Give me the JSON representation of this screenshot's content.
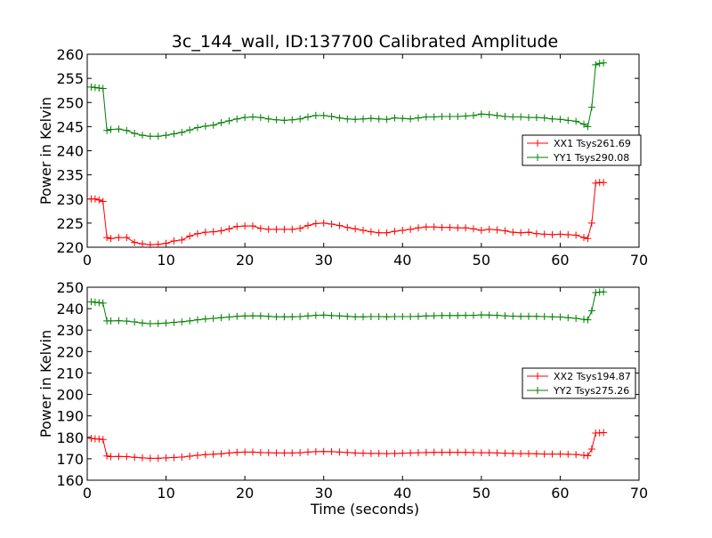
{
  "figure": {
    "title": "3c_144_wall, ID:137700 Calibrated Amplitude",
    "xlabel": "Time (seconds)"
  },
  "colors": {
    "XX": "#ff0000",
    "YY": "#008000",
    "axes": "#000000"
  },
  "chart_data": [
    {
      "type": "line",
      "ylabel": "Power in Kelvin",
      "xlim": [
        0,
        70
      ],
      "ylim": [
        220,
        260
      ],
      "xticks": [
        0,
        10,
        20,
        30,
        40,
        50,
        60,
        70
      ],
      "yticks": [
        220,
        225,
        230,
        235,
        240,
        245,
        250,
        255,
        260
      ],
      "legend_position": "center-right",
      "series": [
        {
          "name": "XX1 Tsys261.69",
          "color": "#ff0000",
          "x": [
            0.5,
            1.0,
            1.5,
            2.0,
            2.5,
            3.0,
            4.0,
            5.0,
            6.0,
            7.0,
            8.0,
            9.0,
            10.0,
            11.0,
            12.0,
            13.0,
            14.0,
            15.0,
            16.0,
            17.0,
            18.0,
            19.0,
            20.0,
            21.0,
            22.0,
            23.0,
            24.0,
            25.0,
            26.0,
            27.0,
            28.0,
            29.0,
            30.0,
            31.0,
            32.0,
            33.0,
            34.0,
            35.0,
            36.0,
            37.0,
            38.0,
            39.0,
            40.0,
            41.0,
            42.0,
            43.0,
            44.0,
            45.0,
            46.0,
            47.0,
            48.0,
            49.0,
            50.0,
            51.0,
            52.0,
            53.0,
            54.0,
            55.0,
            56.0,
            57.0,
            58.0,
            59.0,
            60.0,
            61.0,
            62.0,
            63.0,
            63.5,
            64.0,
            64.5,
            65.0,
            65.5
          ],
          "y": [
            230,
            230,
            229.8,
            229.5,
            222,
            221.8,
            222,
            222,
            221,
            220.7,
            220.5,
            220.6,
            220.8,
            221.3,
            221.5,
            222.3,
            222.8,
            223.1,
            223.2,
            223.4,
            223.8,
            224.3,
            224.4,
            224.4,
            223.9,
            223.7,
            223.7,
            223.7,
            223.7,
            223.9,
            224.5,
            224.9,
            225.0,
            224.8,
            224.5,
            224.1,
            223.8,
            223.5,
            223.2,
            223.0,
            223.0,
            223.3,
            223.5,
            223.7,
            224.0,
            224.2,
            224.2,
            224.1,
            224.1,
            224.0,
            224.0,
            223.8,
            223.5,
            223.7,
            223.6,
            223.4,
            223.1,
            223.0,
            223.1,
            222.8,
            222.7,
            222.6,
            222.7,
            222.6,
            222.5,
            222.0,
            221.8,
            225,
            233.3,
            233.4,
            233.4
          ]
        },
        {
          "name": "YY1 Tsys290.08",
          "color": "#008000",
          "x": [
            0.5,
            1.0,
            1.5,
            2.0,
            2.5,
            3.0,
            4.0,
            5.0,
            6.0,
            7.0,
            8.0,
            9.0,
            10.0,
            11.0,
            12.0,
            13.0,
            14.0,
            15.0,
            16.0,
            17.0,
            18.0,
            19.0,
            20.0,
            21.0,
            22.0,
            23.0,
            24.0,
            25.0,
            26.0,
            27.0,
            28.0,
            29.0,
            30.0,
            31.0,
            32.0,
            33.0,
            34.0,
            35.0,
            36.0,
            37.0,
            38.0,
            39.0,
            40.0,
            41.0,
            42.0,
            43.0,
            44.0,
            45.0,
            46.0,
            47.0,
            48.0,
            49.0,
            50.0,
            51.0,
            52.0,
            53.0,
            54.0,
            55.0,
            56.0,
            57.0,
            58.0,
            59.0,
            60.0,
            61.0,
            62.0,
            63.0,
            63.5,
            64.0,
            64.5,
            65.0,
            65.5
          ],
          "y": [
            253.2,
            253.1,
            253.0,
            252.9,
            244.2,
            244.4,
            244.5,
            244.2,
            243.6,
            243.2,
            243.0,
            243.0,
            243.2,
            243.5,
            243.8,
            244.3,
            244.8,
            245.1,
            245.3,
            245.8,
            246.2,
            246.6,
            246.9,
            247.0,
            246.9,
            246.6,
            246.4,
            246.3,
            246.4,
            246.6,
            247.0,
            247.3,
            247.3,
            247.1,
            246.8,
            246.6,
            246.5,
            246.6,
            246.7,
            246.6,
            246.5,
            246.8,
            246.7,
            246.6,
            246.8,
            247.0,
            247.0,
            247.1,
            247.1,
            247.1,
            247.2,
            247.3,
            247.6,
            247.5,
            247.3,
            247.1,
            247.0,
            247.0,
            246.9,
            246.9,
            246.8,
            246.6,
            246.5,
            246.3,
            246.1,
            245.5,
            245,
            249,
            257.8,
            258.1,
            258.2
          ]
        }
      ]
    },
    {
      "type": "line",
      "ylabel": "Power in Kelvin",
      "xlabel": "Time (seconds)",
      "xlim": [
        0,
        70
      ],
      "ylim": [
        160,
        250
      ],
      "xticks": [
        0,
        10,
        20,
        30,
        40,
        50,
        60,
        70
      ],
      "yticks": [
        160,
        170,
        180,
        190,
        200,
        210,
        220,
        230,
        240,
        250
      ],
      "legend_position": "center-right",
      "series": [
        {
          "name": "XX2 Tsys194.87",
          "color": "#ff0000",
          "x": [
            0.5,
            1.0,
            1.5,
            2.0,
            2.5,
            3.0,
            4.0,
            5.0,
            6.0,
            7.0,
            8.0,
            9.0,
            10.0,
            11.0,
            12.0,
            13.0,
            14.0,
            15.0,
            16.0,
            17.0,
            18.0,
            19.0,
            20.0,
            21.0,
            22.0,
            23.0,
            24.0,
            25.0,
            26.0,
            27.0,
            28.0,
            29.0,
            30.0,
            31.0,
            32.0,
            33.0,
            34.0,
            35.0,
            36.0,
            37.0,
            38.0,
            39.0,
            40.0,
            41.0,
            42.0,
            43.0,
            44.0,
            45.0,
            46.0,
            47.0,
            48.0,
            49.0,
            50.0,
            51.0,
            52.0,
            53.0,
            54.0,
            55.0,
            56.0,
            57.0,
            58.0,
            59.0,
            60.0,
            61.0,
            62.0,
            63.0,
            63.5,
            64.0,
            64.5,
            65.0,
            65.5
          ],
          "y": [
            179.5,
            179.3,
            179.2,
            179.0,
            171.3,
            171.0,
            171.1,
            171.0,
            170.7,
            170.4,
            170.2,
            170.2,
            170.4,
            170.6,
            170.8,
            171.2,
            171.6,
            171.9,
            172.1,
            172.3,
            172.7,
            173.0,
            173.1,
            173.1,
            172.9,
            172.8,
            172.7,
            172.7,
            172.7,
            172.8,
            173.1,
            173.3,
            173.4,
            173.3,
            173.1,
            172.9,
            172.7,
            172.6,
            172.5,
            172.5,
            172.4,
            172.5,
            172.6,
            172.7,
            172.8,
            172.9,
            173.0,
            173.0,
            173.0,
            173.0,
            173.0,
            172.9,
            172.8,
            172.8,
            172.7,
            172.6,
            172.5,
            172.4,
            172.4,
            172.3,
            172.2,
            172.2,
            172.2,
            172.1,
            172.0,
            171.6,
            171.4,
            174.5,
            182.0,
            182.1,
            182.2
          ]
        },
        {
          "name": "YY2 Tsys275.26",
          "color": "#008000",
          "x": [
            0.5,
            1.0,
            1.5,
            2.0,
            2.5,
            3.0,
            4.0,
            5.0,
            6.0,
            7.0,
            8.0,
            9.0,
            10.0,
            11.0,
            12.0,
            13.0,
            14.0,
            15.0,
            16.0,
            17.0,
            18.0,
            19.0,
            20.0,
            21.0,
            22.0,
            23.0,
            24.0,
            25.0,
            26.0,
            27.0,
            28.0,
            29.0,
            30.0,
            31.0,
            32.0,
            33.0,
            34.0,
            35.0,
            36.0,
            37.0,
            38.0,
            39.0,
            40.0,
            41.0,
            42.0,
            43.0,
            44.0,
            45.0,
            46.0,
            47.0,
            48.0,
            49.0,
            50.0,
            51.0,
            52.0,
            53.0,
            54.0,
            55.0,
            56.0,
            57.0,
            58.0,
            59.0,
            60.0,
            61.0,
            62.0,
            63.0,
            63.5,
            64.0,
            64.5,
            65.0,
            65.5
          ],
          "y": [
            243.2,
            243.0,
            242.8,
            242.6,
            234.3,
            234.3,
            234.4,
            234.2,
            233.8,
            233.3,
            233.0,
            233.1,
            233.3,
            233.6,
            233.9,
            234.3,
            234.8,
            235.2,
            235.5,
            235.8,
            236.1,
            236.4,
            236.6,
            236.7,
            236.6,
            236.4,
            236.2,
            236.2,
            236.2,
            236.3,
            236.6,
            236.9,
            237.0,
            236.8,
            236.6,
            236.4,
            236.2,
            236.2,
            236.3,
            236.3,
            236.2,
            236.3,
            236.3,
            236.3,
            236.4,
            236.6,
            236.7,
            236.8,
            236.8,
            236.8,
            236.9,
            236.9,
            237.1,
            237.0,
            236.9,
            236.7,
            236.5,
            236.4,
            236.4,
            236.4,
            236.3,
            236.2,
            236.1,
            235.8,
            235.5,
            235.0,
            234.8,
            239,
            247.5,
            247.7,
            247.8
          ]
        }
      ]
    }
  ]
}
